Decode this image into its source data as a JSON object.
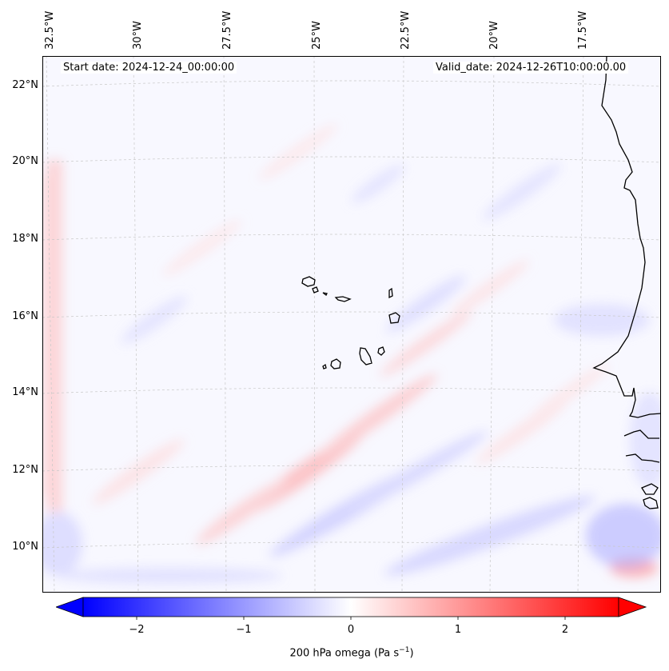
{
  "header": {
    "start_date": "Start date: 2024-12-24_00:00:00",
    "valid_date": "Valid_date: 2024-12-26T10:00:00.00"
  },
  "longitude_labels": [
    "32.5°W",
    "30°W",
    "27.5°W",
    "25°W",
    "22.5°W",
    "20°W",
    "17.5°W"
  ],
  "latitude_labels": [
    "22°N",
    "20°N",
    "18°N",
    "16°N",
    "14°N",
    "12°N",
    "10°N"
  ],
  "colorbar": {
    "ticks": [
      "−2",
      "−1",
      "0",
      "1",
      "2"
    ],
    "tick_values": [
      -2,
      -1,
      0,
      1,
      2
    ],
    "range": [
      -2.5,
      2.5
    ],
    "title": "200 hPa omega (Pa s",
    "title_sup": "−1",
    "title_close": ")",
    "negative_color": "#0000ff",
    "neutral_color": "#ffffff",
    "positive_color": "#ff0000"
  },
  "colors": {
    "coast": "#000000",
    "grid": "#b0b0b0"
  }
}
